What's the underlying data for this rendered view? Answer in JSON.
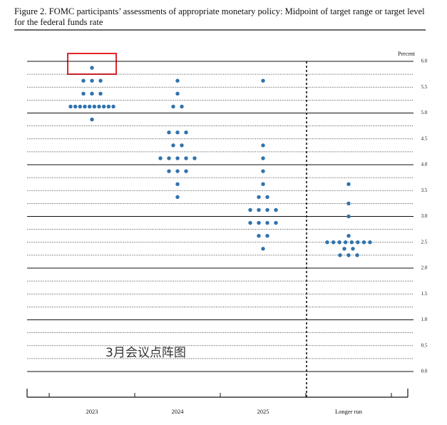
{
  "chart_data": {
    "type": "dot",
    "title": "Figure 2.  FOMC participants’ assessments of appropriate monetary policy: Midpoint of target range or target level for the federal funds rate",
    "y_label": "Percent",
    "annotation": "3月会议点阵图",
    "categories": [
      "2023",
      "2024",
      "2025",
      "Longer run"
    ],
    "color": "#2f73ad",
    "dots": [
      {
        "values": [
          5.875,
          5.625,
          5.375,
          5.125,
          4.875
        ],
        "counts": [
          1,
          3,
          3,
          10,
          1
        ]
      },
      {
        "values": [
          5.625,
          5.375,
          5.125,
          4.625,
          4.375,
          4.125,
          3.875,
          3.625,
          3.375
        ],
        "counts": [
          1,
          1,
          2,
          3,
          2,
          5,
          3,
          1,
          1
        ]
      },
      {
        "values": [
          5.625,
          4.375,
          4.125,
          3.875,
          3.625,
          3.375,
          3.125,
          2.875,
          2.625,
          2.375
        ],
        "counts": [
          1,
          1,
          1,
          1,
          1,
          2,
          4,
          4,
          2,
          1
        ]
      },
      {
        "values": [
          3.625,
          3.25,
          3.0,
          2.625,
          2.5,
          2.375,
          2.25
        ],
        "counts": [
          1,
          1,
          1,
          1,
          8,
          2,
          3
        ]
      }
    ],
    "ylim": [
      0,
      6
    ],
    "yticks": [
      {
        "value": 0,
        "label": "0.0"
      },
      0.5,
      {
        "value": 1,
        "label": "1.0"
      },
      1.5,
      {
        "value": 2,
        "label": "2.0"
      },
      2.5,
      {
        "value": 3,
        "label": "3.0"
      },
      3.5,
      {
        "value": 4,
        "label": "4.0"
      },
      4.5,
      {
        "value": 5,
        "label": "5.0"
      },
      5.5,
      {
        "value": 6,
        "label": "6.0"
      }
    ]
  }
}
